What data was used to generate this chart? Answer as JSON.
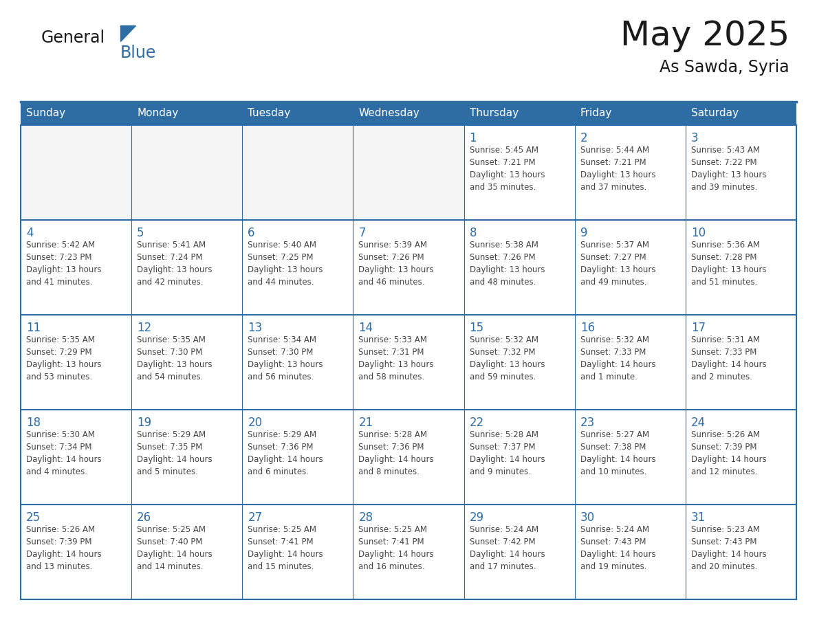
{
  "title": "May 2025",
  "subtitle": "As Sawda, Syria",
  "header_bg_color": "#2E6DA4",
  "header_text_color": "#FFFFFF",
  "cell_bg_even": "#FFFFFF",
  "cell_bg_odd": "#F0F4F8",
  "day_number_color": "#2E6DA4",
  "text_color": "#444444",
  "border_color": "#2E6DA4",
  "grid_line_color": "#AAAAAA",
  "days_of_week": [
    "Sunday",
    "Monday",
    "Tuesday",
    "Wednesday",
    "Thursday",
    "Friday",
    "Saturday"
  ],
  "calendar_data": [
    [
      {
        "day": "",
        "info": ""
      },
      {
        "day": "",
        "info": ""
      },
      {
        "day": "",
        "info": ""
      },
      {
        "day": "",
        "info": ""
      },
      {
        "day": "1",
        "info": "Sunrise: 5:45 AM\nSunset: 7:21 PM\nDaylight: 13 hours\nand 35 minutes."
      },
      {
        "day": "2",
        "info": "Sunrise: 5:44 AM\nSunset: 7:21 PM\nDaylight: 13 hours\nand 37 minutes."
      },
      {
        "day": "3",
        "info": "Sunrise: 5:43 AM\nSunset: 7:22 PM\nDaylight: 13 hours\nand 39 minutes."
      }
    ],
    [
      {
        "day": "4",
        "info": "Sunrise: 5:42 AM\nSunset: 7:23 PM\nDaylight: 13 hours\nand 41 minutes."
      },
      {
        "day": "5",
        "info": "Sunrise: 5:41 AM\nSunset: 7:24 PM\nDaylight: 13 hours\nand 42 minutes."
      },
      {
        "day": "6",
        "info": "Sunrise: 5:40 AM\nSunset: 7:25 PM\nDaylight: 13 hours\nand 44 minutes."
      },
      {
        "day": "7",
        "info": "Sunrise: 5:39 AM\nSunset: 7:26 PM\nDaylight: 13 hours\nand 46 minutes."
      },
      {
        "day": "8",
        "info": "Sunrise: 5:38 AM\nSunset: 7:26 PM\nDaylight: 13 hours\nand 48 minutes."
      },
      {
        "day": "9",
        "info": "Sunrise: 5:37 AM\nSunset: 7:27 PM\nDaylight: 13 hours\nand 49 minutes."
      },
      {
        "day": "10",
        "info": "Sunrise: 5:36 AM\nSunset: 7:28 PM\nDaylight: 13 hours\nand 51 minutes."
      }
    ],
    [
      {
        "day": "11",
        "info": "Sunrise: 5:35 AM\nSunset: 7:29 PM\nDaylight: 13 hours\nand 53 minutes."
      },
      {
        "day": "12",
        "info": "Sunrise: 5:35 AM\nSunset: 7:30 PM\nDaylight: 13 hours\nand 54 minutes."
      },
      {
        "day": "13",
        "info": "Sunrise: 5:34 AM\nSunset: 7:30 PM\nDaylight: 13 hours\nand 56 minutes."
      },
      {
        "day": "14",
        "info": "Sunrise: 5:33 AM\nSunset: 7:31 PM\nDaylight: 13 hours\nand 58 minutes."
      },
      {
        "day": "15",
        "info": "Sunrise: 5:32 AM\nSunset: 7:32 PM\nDaylight: 13 hours\nand 59 minutes."
      },
      {
        "day": "16",
        "info": "Sunrise: 5:32 AM\nSunset: 7:33 PM\nDaylight: 14 hours\nand 1 minute."
      },
      {
        "day": "17",
        "info": "Sunrise: 5:31 AM\nSunset: 7:33 PM\nDaylight: 14 hours\nand 2 minutes."
      }
    ],
    [
      {
        "day": "18",
        "info": "Sunrise: 5:30 AM\nSunset: 7:34 PM\nDaylight: 14 hours\nand 4 minutes."
      },
      {
        "day": "19",
        "info": "Sunrise: 5:29 AM\nSunset: 7:35 PM\nDaylight: 14 hours\nand 5 minutes."
      },
      {
        "day": "20",
        "info": "Sunrise: 5:29 AM\nSunset: 7:36 PM\nDaylight: 14 hours\nand 6 minutes."
      },
      {
        "day": "21",
        "info": "Sunrise: 5:28 AM\nSunset: 7:36 PM\nDaylight: 14 hours\nand 8 minutes."
      },
      {
        "day": "22",
        "info": "Sunrise: 5:28 AM\nSunset: 7:37 PM\nDaylight: 14 hours\nand 9 minutes."
      },
      {
        "day": "23",
        "info": "Sunrise: 5:27 AM\nSunset: 7:38 PM\nDaylight: 14 hours\nand 10 minutes."
      },
      {
        "day": "24",
        "info": "Sunrise: 5:26 AM\nSunset: 7:39 PM\nDaylight: 14 hours\nand 12 minutes."
      }
    ],
    [
      {
        "day": "25",
        "info": "Sunrise: 5:26 AM\nSunset: 7:39 PM\nDaylight: 14 hours\nand 13 minutes."
      },
      {
        "day": "26",
        "info": "Sunrise: 5:25 AM\nSunset: 7:40 PM\nDaylight: 14 hours\nand 14 minutes."
      },
      {
        "day": "27",
        "info": "Sunrise: 5:25 AM\nSunset: 7:41 PM\nDaylight: 14 hours\nand 15 minutes."
      },
      {
        "day": "28",
        "info": "Sunrise: 5:25 AM\nSunset: 7:41 PM\nDaylight: 14 hours\nand 16 minutes."
      },
      {
        "day": "29",
        "info": "Sunrise: 5:24 AM\nSunset: 7:42 PM\nDaylight: 14 hours\nand 17 minutes."
      },
      {
        "day": "30",
        "info": "Sunrise: 5:24 AM\nSunset: 7:43 PM\nDaylight: 14 hours\nand 19 minutes."
      },
      {
        "day": "31",
        "info": "Sunrise: 5:23 AM\nSunset: 7:43 PM\nDaylight: 14 hours\nand 20 minutes."
      }
    ]
  ]
}
